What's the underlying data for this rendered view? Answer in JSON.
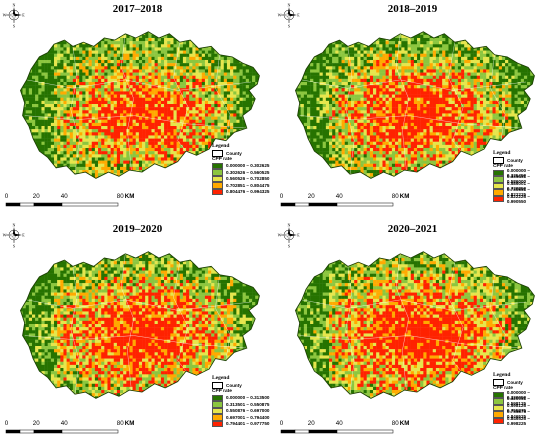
{
  "compass": {
    "north": "N",
    "south": "S",
    "east": "E",
    "west": "W"
  },
  "scale": {
    "labels": [
      "0",
      "20",
      "40",
      "80"
    ],
    "unit": "KM"
  },
  "legend_header": {
    "title": "Legend",
    "county": "County",
    "rate": "CPP rate"
  },
  "class_colors": [
    "#267300",
    "#8cc63f",
    "#e6e64c",
    "#ffaa00",
    "#ff2200"
  ],
  "panels": [
    {
      "title": "2017–2018",
      "classes": [
        "0.000000 – 0.302625",
        "0.302626 – 0.560525",
        "0.560526 – 0.702850",
        "0.702851 – 0.804475",
        "0.804476 – 0.994325"
      ]
    },
    {
      "title": "2018–2019",
      "classes": [
        "0.000000 – 0.335450",
        "0.335451 – 0.586000",
        "0.586001 – 0.730850",
        "0.730851 – 0.822225",
        "0.822226 – 0.990550"
      ]
    },
    {
      "title": "2019–2020",
      "classes": [
        "0.000000 – 0.313500",
        "0.313501 – 0.550875",
        "0.550876 – 0.697000",
        "0.697001 – 0.794400",
        "0.794401 – 0.977750"
      ]
    },
    {
      "title": "2020–2021",
      "classes": [
        "0.000000 – 0.320050",
        "0.320051 – 0.598125",
        "0.598126 – 0.755875",
        "0.755876 – 0.846525",
        "0.846526 – 0.998225"
      ]
    }
  ]
}
